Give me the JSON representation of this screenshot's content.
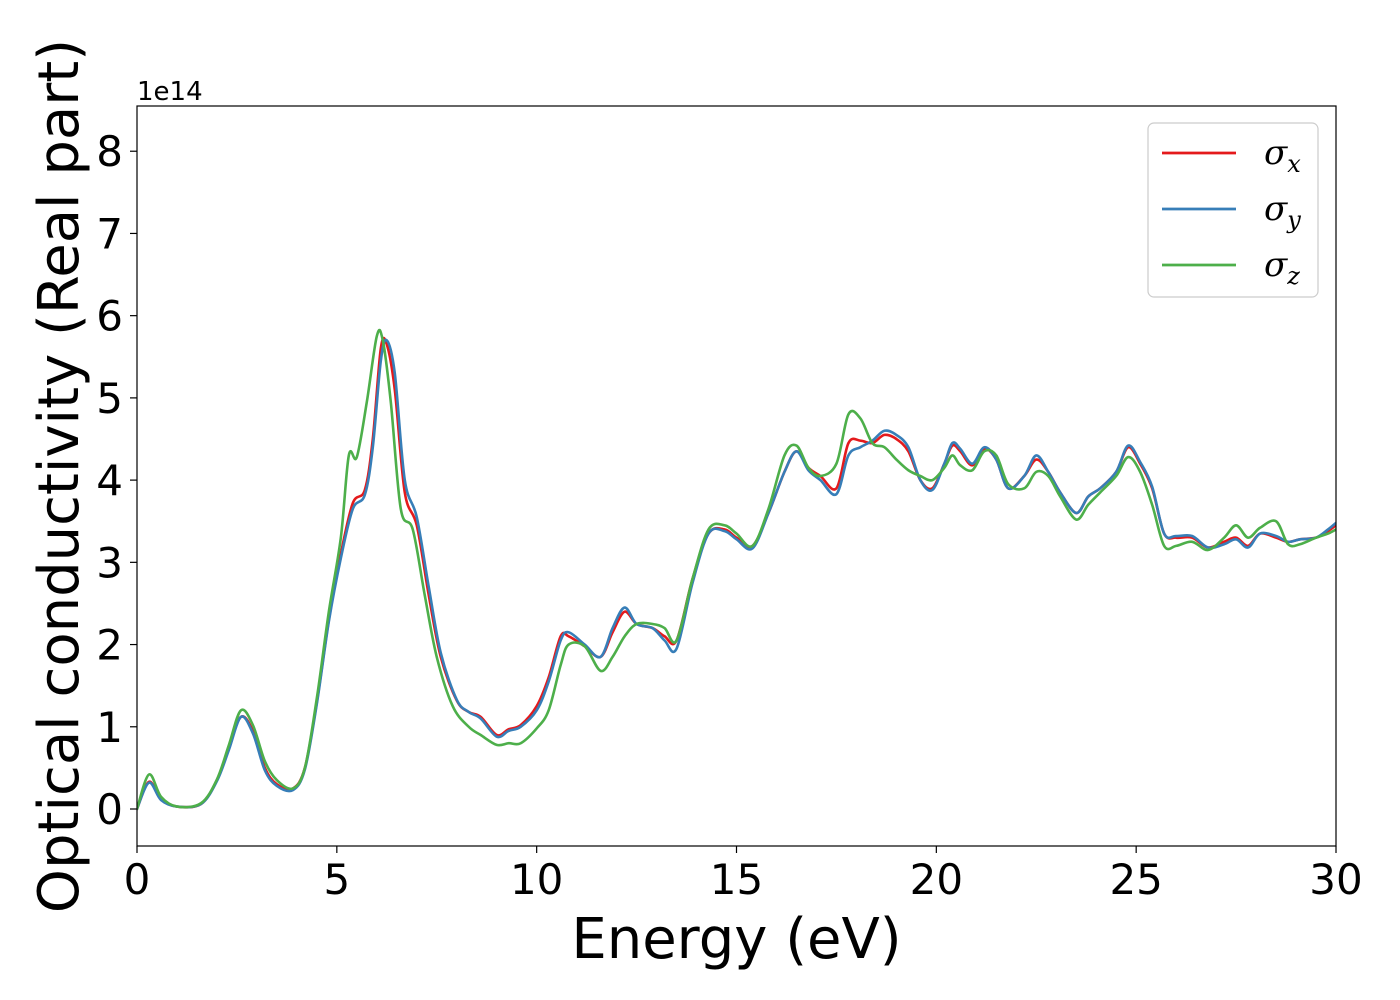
{
  "chart_data": {
    "type": "line",
    "title": "",
    "xlabel": "Energy (eV)",
    "ylabel": "Optical conductivity (Real part)",
    "y_offset_label": "1e14",
    "y_scale_factor": 100000000000000.0,
    "xlim": [
      0,
      30
    ],
    "ylim": [
      -0.45,
      8.55
    ],
    "x_ticks": [
      0,
      5,
      10,
      15,
      20,
      25,
      30
    ],
    "y_ticks": [
      0,
      1,
      2,
      3,
      4,
      5,
      6,
      7,
      8
    ],
    "grid": false,
    "legend_position": "top-right",
    "series": [
      {
        "name": "σ_x",
        "legend_symbol": "σ",
        "legend_subscript": "x",
        "color": "#e41a1c",
        "points": [
          [
            0,
            0
          ],
          [
            0.3,
            0.33
          ],
          [
            0.6,
            0.12
          ],
          [
            1,
            0.03
          ],
          [
            1.6,
            0.06
          ],
          [
            2,
            0.35
          ],
          [
            2.3,
            0.75
          ],
          [
            2.6,
            1.12
          ],
          [
            2.9,
            0.95
          ],
          [
            3.2,
            0.5
          ],
          [
            3.5,
            0.3
          ],
          [
            3.9,
            0.25
          ],
          [
            4.2,
            0.5
          ],
          [
            4.5,
            1.3
          ],
          [
            4.8,
            2.3
          ],
          [
            5.1,
            3.1
          ],
          [
            5.4,
            3.72
          ],
          [
            5.7,
            3.88
          ],
          [
            5.9,
            4.5
          ],
          [
            6.1,
            5.6
          ],
          [
            6.25,
            5.65
          ],
          [
            6.45,
            5.1
          ],
          [
            6.7,
            3.85
          ],
          [
            7,
            3.45
          ],
          [
            7.3,
            2.6
          ],
          [
            7.6,
            1.85
          ],
          [
            8,
            1.32
          ],
          [
            8.3,
            1.18
          ],
          [
            8.6,
            1.12
          ],
          [
            9,
            0.9
          ],
          [
            9.3,
            0.97
          ],
          [
            9.6,
            1.02
          ],
          [
            10,
            1.25
          ],
          [
            10.3,
            1.6
          ],
          [
            10.6,
            2.1
          ],
          [
            10.8,
            2.1
          ],
          [
            11.2,
            1.98
          ],
          [
            11.6,
            1.85
          ],
          [
            11.9,
            2.15
          ],
          [
            12.2,
            2.4
          ],
          [
            12.5,
            2.25
          ],
          [
            12.9,
            2.2
          ],
          [
            13.2,
            2.1
          ],
          [
            13.5,
            2.05
          ],
          [
            13.9,
            2.8
          ],
          [
            14.3,
            3.35
          ],
          [
            14.7,
            3.4
          ],
          [
            15,
            3.3
          ],
          [
            15.4,
            3.2
          ],
          [
            15.8,
            3.6
          ],
          [
            16.2,
            4.1
          ],
          [
            16.5,
            4.35
          ],
          [
            16.8,
            4.15
          ],
          [
            17.1,
            4.05
          ],
          [
            17.5,
            3.9
          ],
          [
            17.8,
            4.45
          ],
          [
            18.1,
            4.48
          ],
          [
            18.4,
            4.45
          ],
          [
            18.7,
            4.55
          ],
          [
            19,
            4.5
          ],
          [
            19.3,
            4.35
          ],
          [
            19.6,
            4.0
          ],
          [
            19.9,
            3.9
          ],
          [
            20.2,
            4.2
          ],
          [
            20.4,
            4.42
          ],
          [
            20.6,
            4.35
          ],
          [
            20.9,
            4.18
          ],
          [
            21.2,
            4.38
          ],
          [
            21.5,
            4.25
          ],
          [
            21.8,
            3.9
          ],
          [
            22.2,
            4.05
          ],
          [
            22.5,
            4.25
          ],
          [
            22.8,
            4.1
          ],
          [
            23.1,
            3.85
          ],
          [
            23.5,
            3.6
          ],
          [
            23.8,
            3.8
          ],
          [
            24.1,
            3.9
          ],
          [
            24.5,
            4.1
          ],
          [
            24.8,
            4.4
          ],
          [
            25.1,
            4.2
          ],
          [
            25.4,
            3.9
          ],
          [
            25.7,
            3.35
          ],
          [
            26,
            3.3
          ],
          [
            26.4,
            3.3
          ],
          [
            26.8,
            3.18
          ],
          [
            27.2,
            3.25
          ],
          [
            27.5,
            3.3
          ],
          [
            27.8,
            3.2
          ],
          [
            28.1,
            3.35
          ],
          [
            28.5,
            3.3
          ],
          [
            28.8,
            3.25
          ],
          [
            29.1,
            3.28
          ],
          [
            29.5,
            3.3
          ],
          [
            29.8,
            3.38
          ],
          [
            30,
            3.45
          ]
        ]
      },
      {
        "name": "σ_y",
        "legend_symbol": "σ",
        "legend_subscript": "y",
        "color": "#377eb8",
        "points": [
          [
            0,
            0
          ],
          [
            0.3,
            0.32
          ],
          [
            0.6,
            0.11
          ],
          [
            1,
            0.03
          ],
          [
            1.6,
            0.06
          ],
          [
            2,
            0.34
          ],
          [
            2.3,
            0.72
          ],
          [
            2.6,
            1.12
          ],
          [
            2.9,
            0.92
          ],
          [
            3.2,
            0.47
          ],
          [
            3.5,
            0.28
          ],
          [
            3.9,
            0.23
          ],
          [
            4.2,
            0.48
          ],
          [
            4.5,
            1.28
          ],
          [
            4.8,
            2.28
          ],
          [
            5.1,
            3.05
          ],
          [
            5.4,
            3.65
          ],
          [
            5.7,
            3.82
          ],
          [
            5.9,
            4.4
          ],
          [
            6.1,
            5.45
          ],
          [
            6.25,
            5.7
          ],
          [
            6.45,
            5.3
          ],
          [
            6.7,
            4.0
          ],
          [
            7,
            3.55
          ],
          [
            7.3,
            2.7
          ],
          [
            7.6,
            1.9
          ],
          [
            8,
            1.33
          ],
          [
            8.3,
            1.18
          ],
          [
            8.6,
            1.1
          ],
          [
            9,
            0.88
          ],
          [
            9.3,
            0.95
          ],
          [
            9.6,
            1.0
          ],
          [
            10,
            1.2
          ],
          [
            10.3,
            1.55
          ],
          [
            10.6,
            2.05
          ],
          [
            10.8,
            2.15
          ],
          [
            11.2,
            2.0
          ],
          [
            11.6,
            1.85
          ],
          [
            11.9,
            2.2
          ],
          [
            12.2,
            2.45
          ],
          [
            12.5,
            2.25
          ],
          [
            12.9,
            2.2
          ],
          [
            13.2,
            2.05
          ],
          [
            13.5,
            1.95
          ],
          [
            13.9,
            2.75
          ],
          [
            14.3,
            3.35
          ],
          [
            14.7,
            3.38
          ],
          [
            15,
            3.28
          ],
          [
            15.4,
            3.17
          ],
          [
            15.8,
            3.6
          ],
          [
            16.2,
            4.1
          ],
          [
            16.5,
            4.35
          ],
          [
            16.8,
            4.12
          ],
          [
            17.1,
            4.0
          ],
          [
            17.5,
            3.83
          ],
          [
            17.8,
            4.3
          ],
          [
            18.1,
            4.4
          ],
          [
            18.4,
            4.48
          ],
          [
            18.7,
            4.6
          ],
          [
            19,
            4.55
          ],
          [
            19.3,
            4.4
          ],
          [
            19.6,
            4.0
          ],
          [
            19.9,
            3.88
          ],
          [
            20.2,
            4.2
          ],
          [
            20.4,
            4.45
          ],
          [
            20.6,
            4.38
          ],
          [
            20.9,
            4.2
          ],
          [
            21.2,
            4.4
          ],
          [
            21.5,
            4.25
          ],
          [
            21.8,
            3.9
          ],
          [
            22.2,
            4.05
          ],
          [
            22.5,
            4.3
          ],
          [
            22.8,
            4.1
          ],
          [
            23.1,
            3.85
          ],
          [
            23.5,
            3.6
          ],
          [
            23.8,
            3.8
          ],
          [
            24.1,
            3.9
          ],
          [
            24.5,
            4.1
          ],
          [
            24.8,
            4.42
          ],
          [
            25.1,
            4.22
          ],
          [
            25.4,
            3.92
          ],
          [
            25.7,
            3.35
          ],
          [
            26,
            3.32
          ],
          [
            26.4,
            3.32
          ],
          [
            26.8,
            3.18
          ],
          [
            27.2,
            3.22
          ],
          [
            27.5,
            3.28
          ],
          [
            27.8,
            3.18
          ],
          [
            28.1,
            3.35
          ],
          [
            28.5,
            3.32
          ],
          [
            28.8,
            3.25
          ],
          [
            29.1,
            3.28
          ],
          [
            29.5,
            3.3
          ],
          [
            29.8,
            3.4
          ],
          [
            30,
            3.48
          ]
        ]
      },
      {
        "name": "σ_z",
        "legend_symbol": "σ",
        "legend_subscript": "z",
        "color": "#4daf4a",
        "points": [
          [
            0,
            0
          ],
          [
            0.3,
            0.42
          ],
          [
            0.6,
            0.15
          ],
          [
            1,
            0.03
          ],
          [
            1.6,
            0.07
          ],
          [
            2,
            0.36
          ],
          [
            2.3,
            0.78
          ],
          [
            2.6,
            1.2
          ],
          [
            2.9,
            1.02
          ],
          [
            3.2,
            0.58
          ],
          [
            3.5,
            0.35
          ],
          [
            3.9,
            0.25
          ],
          [
            4.2,
            0.5
          ],
          [
            4.5,
            1.35
          ],
          [
            4.8,
            2.4
          ],
          [
            5.1,
            3.3
          ],
          [
            5.3,
            4.3
          ],
          [
            5.5,
            4.28
          ],
          [
            5.75,
            4.95
          ],
          [
            6,
            5.75
          ],
          [
            6.15,
            5.7
          ],
          [
            6.35,
            4.95
          ],
          [
            6.6,
            3.65
          ],
          [
            6.9,
            3.4
          ],
          [
            7.2,
            2.6
          ],
          [
            7.5,
            1.85
          ],
          [
            7.9,
            1.25
          ],
          [
            8.3,
            1.0
          ],
          [
            8.6,
            0.9
          ],
          [
            9,
            0.78
          ],
          [
            9.3,
            0.8
          ],
          [
            9.6,
            0.8
          ],
          [
            10,
            0.98
          ],
          [
            10.3,
            1.2
          ],
          [
            10.6,
            1.75
          ],
          [
            10.8,
            2.0
          ],
          [
            11.2,
            1.98
          ],
          [
            11.6,
            1.68
          ],
          [
            11.9,
            1.85
          ],
          [
            12.2,
            2.1
          ],
          [
            12.5,
            2.25
          ],
          [
            12.9,
            2.25
          ],
          [
            13.2,
            2.2
          ],
          [
            13.5,
            2.05
          ],
          [
            13.9,
            2.8
          ],
          [
            14.3,
            3.4
          ],
          [
            14.7,
            3.45
          ],
          [
            15,
            3.35
          ],
          [
            15.4,
            3.2
          ],
          [
            15.8,
            3.65
          ],
          [
            16.2,
            4.3
          ],
          [
            16.5,
            4.42
          ],
          [
            16.8,
            4.15
          ],
          [
            17.1,
            4.05
          ],
          [
            17.5,
            4.2
          ],
          [
            17.8,
            4.8
          ],
          [
            18.1,
            4.75
          ],
          [
            18.4,
            4.45
          ],
          [
            18.7,
            4.4
          ],
          [
            19,
            4.25
          ],
          [
            19.3,
            4.12
          ],
          [
            19.6,
            4.05
          ],
          [
            19.9,
            4.0
          ],
          [
            20.2,
            4.15
          ],
          [
            20.4,
            4.3
          ],
          [
            20.6,
            4.18
          ],
          [
            20.9,
            4.12
          ],
          [
            21.2,
            4.35
          ],
          [
            21.5,
            4.3
          ],
          [
            21.8,
            3.95
          ],
          [
            22.2,
            3.9
          ],
          [
            22.5,
            4.1
          ],
          [
            22.8,
            4.05
          ],
          [
            23.1,
            3.8
          ],
          [
            23.5,
            3.52
          ],
          [
            23.8,
            3.7
          ],
          [
            24.1,
            3.85
          ],
          [
            24.5,
            4.05
          ],
          [
            24.8,
            4.28
          ],
          [
            25.1,
            4.1
          ],
          [
            25.4,
            3.7
          ],
          [
            25.7,
            3.2
          ],
          [
            26,
            3.2
          ],
          [
            26.4,
            3.25
          ],
          [
            26.8,
            3.15
          ],
          [
            27.2,
            3.3
          ],
          [
            27.5,
            3.45
          ],
          [
            27.8,
            3.3
          ],
          [
            28.1,
            3.42
          ],
          [
            28.5,
            3.5
          ],
          [
            28.8,
            3.22
          ],
          [
            29.1,
            3.22
          ],
          [
            29.5,
            3.3
          ],
          [
            29.8,
            3.35
          ],
          [
            30,
            3.4
          ]
        ]
      }
    ]
  }
}
